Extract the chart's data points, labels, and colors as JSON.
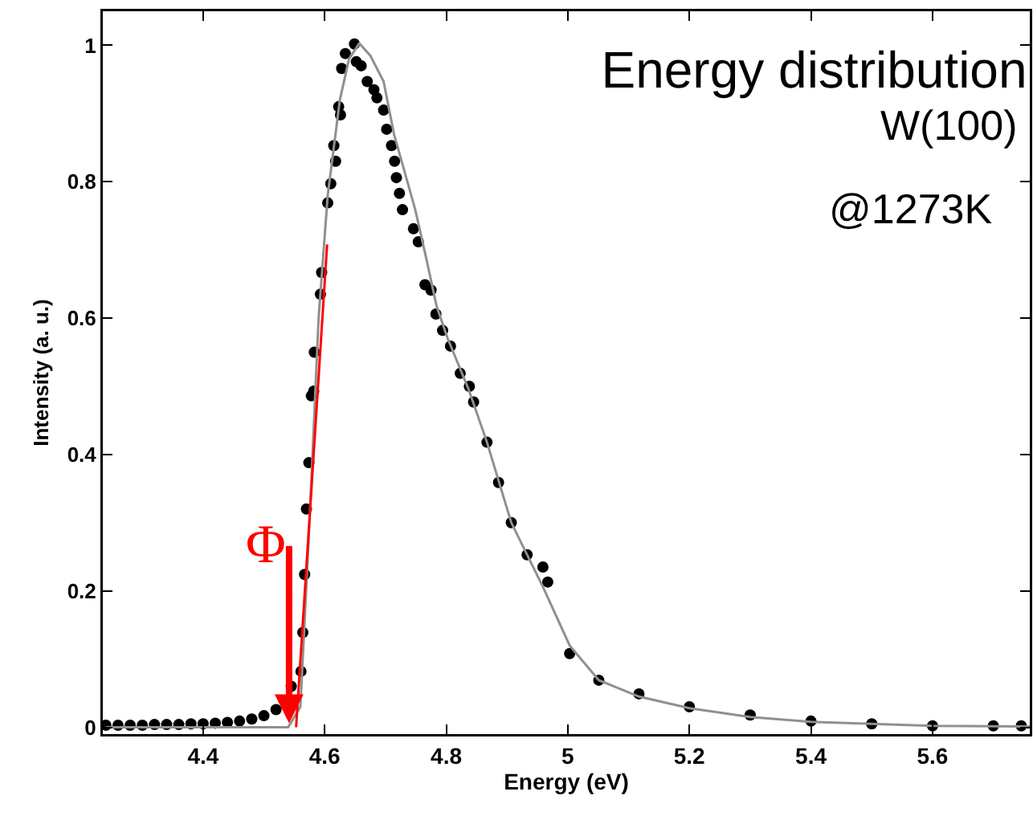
{
  "chart_data": {
    "type": "scatter",
    "title": "Energy distribution",
    "xlabel": "Energy (eV)",
    "ylabel": "Intensity (a. u.)",
    "annotations": [
      "W(100)",
      "@1273K",
      {
        "text": "Φ",
        "x": 4.552,
        "y": 0.006
      }
    ],
    "xlim": [
      4.235,
      5.76
    ],
    "xticks": [
      4.4,
      4.6,
      4.8,
      5,
      5.2,
      5.4,
      5.6
    ],
    "ylim": [
      -0.01,
      1.05
    ],
    "yticks": [
      0,
      0.2,
      0.4,
      0.6,
      0.8,
      1
    ],
    "grid": false,
    "series": [
      {
        "marker": "circle",
        "color": "#000000",
        "x": [
          4.24,
          4.26,
          4.28,
          4.3,
          4.32,
          4.34,
          4.36,
          4.38,
          4.4,
          4.42,
          4.44,
          4.46,
          4.48,
          4.5,
          4.52,
          4.545,
          4.561,
          4.564,
          4.567,
          4.57,
          4.574,
          4.578,
          4.582,
          4.583,
          4.593,
          4.595,
          4.605,
          4.61,
          4.615,
          4.618,
          4.623,
          4.626,
          4.628,
          4.634,
          4.649,
          4.652,
          4.66,
          4.67,
          4.681,
          4.686,
          4.697,
          4.702,
          4.71,
          4.715,
          4.718,
          4.723,
          4.728,
          4.746,
          4.754,
          4.765,
          4.775,
          4.783,
          4.794,
          4.807,
          4.823,
          4.838,
          4.845,
          4.867,
          4.886,
          4.907,
          4.933,
          4.959,
          4.967,
          5.003,
          5.051,
          5.117,
          5.2,
          5.3,
          5.4,
          5.5,
          5.6,
          5.7,
          5.746
        ],
        "values": [
          0.003,
          0.003,
          0.003,
          0.003,
          0.004,
          0.004,
          0.004,
          0.005,
          0.005,
          0.006,
          0.007,
          0.009,
          0.012,
          0.017,
          0.026,
          0.06,
          0.082,
          0.139,
          0.224,
          0.32,
          0.388,
          0.486,
          0.493,
          0.55,
          0.635,
          0.667,
          0.769,
          0.797,
          0.853,
          0.83,
          0.91,
          0.898,
          0.966,
          0.988,
          1.002,
          0.976,
          0.97,
          0.947,
          0.935,
          0.923,
          0.905,
          0.877,
          0.853,
          0.83,
          0.806,
          0.783,
          0.759,
          0.731,
          0.712,
          0.649,
          0.641,
          0.606,
          0.582,
          0.559,
          0.519,
          0.5,
          0.477,
          0.418,
          0.359,
          0.3,
          0.253,
          0.235,
          0.213,
          0.108,
          0.069,
          0.049,
          0.03,
          0.018,
          0.009,
          0.005,
          0.002,
          0.002,
          0.002
        ]
      },
      {
        "type": "line",
        "color": "#909090",
        "x": [
          4.24,
          4.54,
          4.56,
          4.575,
          4.59,
          4.605,
          4.625,
          4.64,
          4.657,
          4.675,
          4.697,
          4.714,
          4.749,
          4.767,
          4.784,
          4.802,
          4.837,
          4.867,
          4.907,
          4.959,
          5.003,
          5.051,
          5.117,
          5.2,
          5.3,
          5.4,
          5.6,
          5.76
        ],
        "values": [
          0.0,
          0.0,
          0.03,
          0.3,
          0.6,
          0.78,
          0.92,
          0.98,
          1.003,
          0.985,
          0.947,
          0.87,
          0.759,
          0.688,
          0.618,
          0.571,
          0.495,
          0.418,
          0.3,
          0.206,
          0.12,
          0.069,
          0.045,
          0.028,
          0.015,
          0.008,
          0.002,
          0.001
        ]
      },
      {
        "type": "line",
        "color": "#ff0000",
        "x": [
          4.553,
          4.604
        ],
        "values": [
          0,
          0.708
        ]
      }
    ]
  }
}
